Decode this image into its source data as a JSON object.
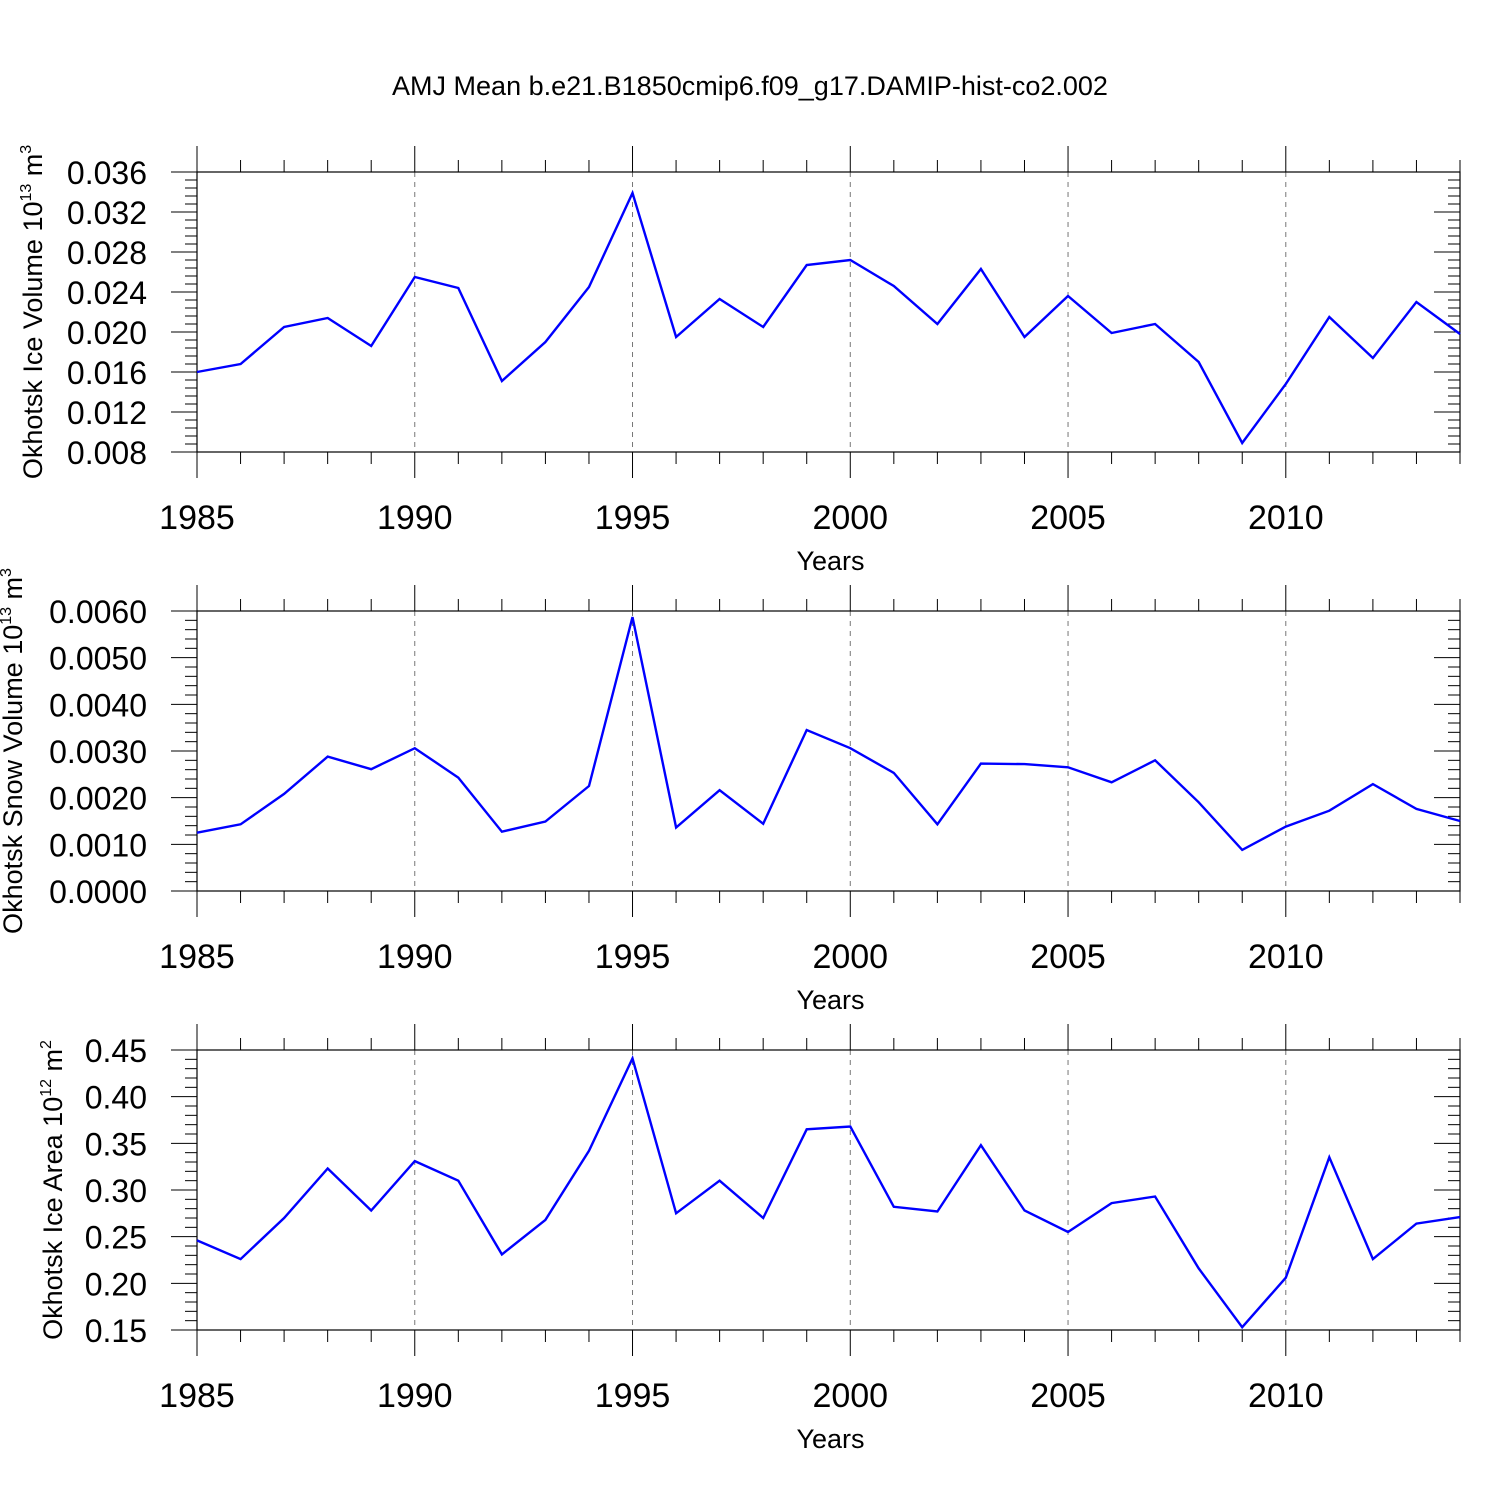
{
  "title": "AMJ Mean b.e21.B1850cmip6.f09_g17.DAMIP-hist-co2.002",
  "chart_data": [
    {
      "type": "line",
      "ylabel_text": "Okhotsk Ice Volume 10",
      "ylabel_exponent": "13",
      "ylabel_unit": " m",
      "ylabel_unit_exponent": "3",
      "xlabel": "Years",
      "xlim": [
        1985,
        2014
      ],
      "ylim": [
        0.008,
        0.036
      ],
      "xticks": [
        1985,
        1990,
        1995,
        2000,
        2005,
        2010
      ],
      "yticks": [
        "0.008",
        "0.012",
        "0.016",
        "0.020",
        "0.024",
        "0.028",
        "0.032",
        "0.036"
      ],
      "x": [
        1985,
        1986,
        1987,
        1988,
        1989,
        1990,
        1991,
        1992,
        1993,
        1994,
        1995,
        1996,
        1997,
        1998,
        1999,
        2000,
        2001,
        2002,
        2003,
        2004,
        2005,
        2006,
        2007,
        2008,
        2009,
        2010,
        2011,
        2012,
        2013,
        2014
      ],
      "values": [
        0.016,
        0.0168,
        0.0205,
        0.0214,
        0.0186,
        0.0255,
        0.0244,
        0.0151,
        0.019,
        0.0245,
        0.0339,
        0.0195,
        0.0233,
        0.0205,
        0.0267,
        0.0272,
        0.0246,
        0.0208,
        0.0263,
        0.0195,
        0.0236,
        0.0199,
        0.0208,
        0.017,
        0.0089,
        0.0148,
        0.0215,
        0.0174,
        0.023,
        0.0198
      ],
      "grid": "vertical dashed at major x ticks",
      "line_color": "#0000ff"
    },
    {
      "type": "line",
      "ylabel_text": "Okhotsk Snow Volume 10",
      "ylabel_exponent": "13",
      "ylabel_unit": " m",
      "ylabel_unit_exponent": "3",
      "xlabel": "Years",
      "xlim": [
        1985,
        2014
      ],
      "ylim": [
        0.0,
        0.006
      ],
      "xticks": [
        1985,
        1990,
        1995,
        2000,
        2005,
        2010
      ],
      "yticks": [
        "0.0000",
        "0.0010",
        "0.0020",
        "0.0030",
        "0.0040",
        "0.0050",
        "0.0060"
      ],
      "x": [
        1985,
        1986,
        1987,
        1988,
        1989,
        1990,
        1991,
        1992,
        1993,
        1994,
        1995,
        1996,
        1997,
        1998,
        1999,
        2000,
        2001,
        2002,
        2003,
        2004,
        2005,
        2006,
        2007,
        2008,
        2009,
        2010,
        2011,
        2012,
        2013,
        2014
      ],
      "values": [
        0.00125,
        0.00143,
        0.00208,
        0.00288,
        0.00261,
        0.00306,
        0.00243,
        0.00127,
        0.00149,
        0.00225,
        0.00587,
        0.00136,
        0.00216,
        0.00144,
        0.00345,
        0.00306,
        0.00253,
        0.00143,
        0.00273,
        0.00272,
        0.00265,
        0.00233,
        0.0028,
        0.0019,
        0.00088,
        0.00138,
        0.00172,
        0.00229,
        0.00176,
        0.0015
      ],
      "grid": "vertical dashed at major x ticks",
      "line_color": "#0000ff"
    },
    {
      "type": "line",
      "ylabel_text": "Okhotsk Ice Area 10",
      "ylabel_exponent": "12",
      "ylabel_unit": " m",
      "ylabel_unit_exponent": "2",
      "xlabel": "Years",
      "xlim": [
        1985,
        2014
      ],
      "ylim": [
        0.15,
        0.45
      ],
      "xticks": [
        1985,
        1990,
        1995,
        2000,
        2005,
        2010
      ],
      "yticks": [
        "0.15",
        "0.20",
        "0.25",
        "0.30",
        "0.35",
        "0.40",
        "0.45"
      ],
      "x": [
        1985,
        1986,
        1987,
        1988,
        1989,
        1990,
        1991,
        1992,
        1993,
        1994,
        1995,
        1996,
        1997,
        1998,
        1999,
        2000,
        2001,
        2002,
        2003,
        2004,
        2005,
        2006,
        2007,
        2008,
        2009,
        2010,
        2011,
        2012,
        2013,
        2014
      ],
      "values": [
        0.246,
        0.226,
        0.27,
        0.323,
        0.278,
        0.331,
        0.31,
        0.231,
        0.268,
        0.342,
        0.441,
        0.275,
        0.31,
        0.27,
        0.365,
        0.368,
        0.282,
        0.277,
        0.348,
        0.278,
        0.255,
        0.286,
        0.293,
        0.216,
        0.153,
        0.206,
        0.335,
        0.226,
        0.264,
        0.271
      ],
      "grid": "vertical dashed at major x ticks",
      "line_color": "#0000ff"
    }
  ]
}
